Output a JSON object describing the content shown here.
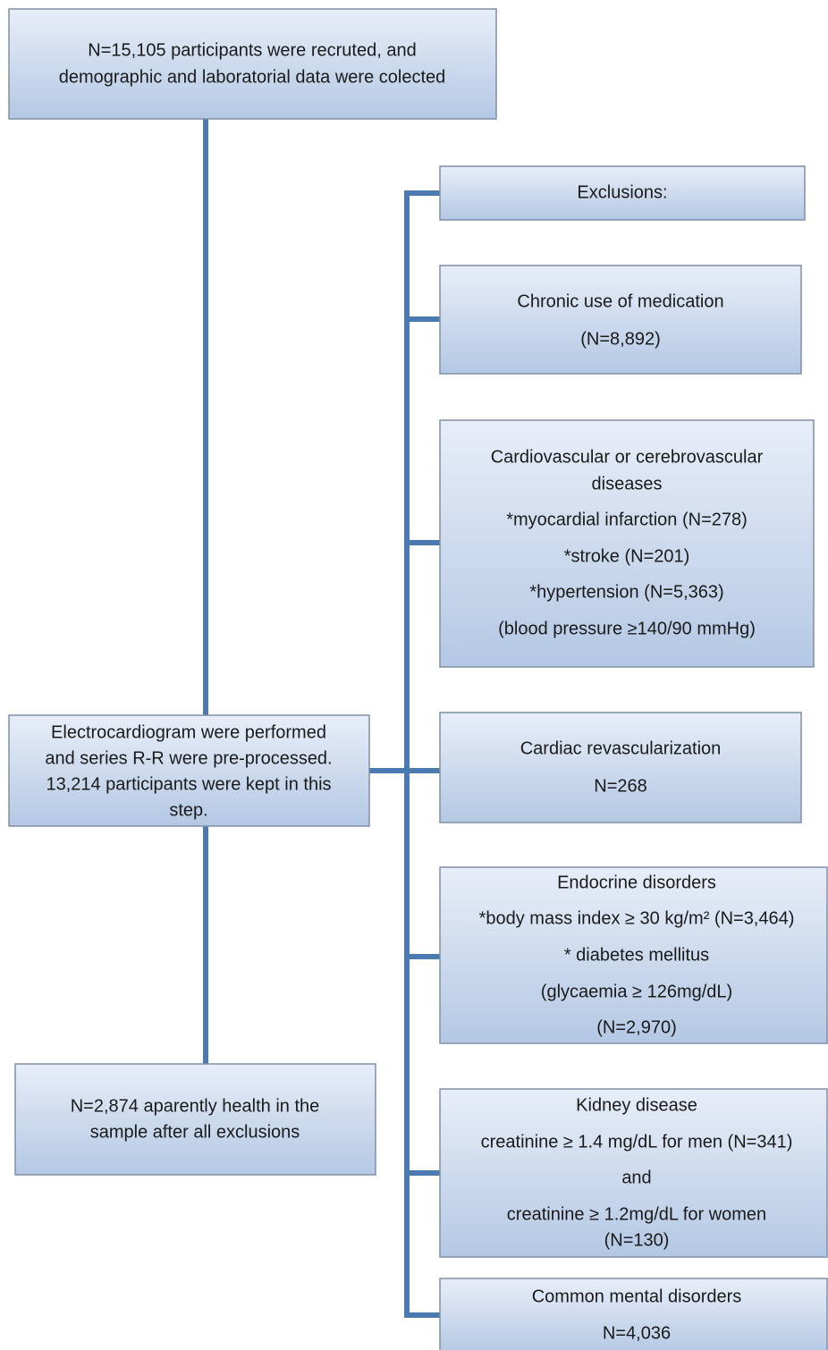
{
  "nodes": [
    {
      "lines": [
        "N=15,105  participants were recruted, and",
        "demographic and laboratorial data were colected"
      ]
    },
    {
      "lines": [
        "Exclusions:"
      ]
    },
    {
      "lines": [
        "Chronic use of medication",
        "(N=8,892)"
      ]
    },
    {
      "lines": [
        "Cardiovascular or  cerebrovascular",
        "diseases",
        "*myocardial infarction (N=278)",
        "*stroke (N=201)",
        "*hypertension (N=5,363)",
        "(blood pressure ≥140/90 mmHg)"
      ]
    },
    {
      "lines": [
        "Electrocardiogram were performed",
        "and series R-R were pre-processed.",
        "13,214 participants were kept in this",
        "step."
      ]
    },
    {
      "lines": [
        "Cardiac revascularization",
        "N=268"
      ]
    },
    {
      "lines": [
        "Endocrine disorders",
        "*body mass index ≥ 30 kg/m² (N=3,464)",
        "* diabetes mellitus",
        "(glycaemia  ≥ 126mg/dL)",
        "(N=2,970)"
      ]
    },
    {
      "lines": [
        "N=2,874 aparently health in the",
        "sample after all exclusions"
      ]
    },
    {
      "lines": [
        "Kidney disease",
        "creatinine ≥ 1.4 mg/dL for men (N=341)",
        "and",
        "creatinine ≥ 1.2mg/dL for women",
        "(N=130)"
      ]
    },
    {
      "lines": [
        "Common mental disorders",
        "N=4,036"
      ]
    }
  ]
}
